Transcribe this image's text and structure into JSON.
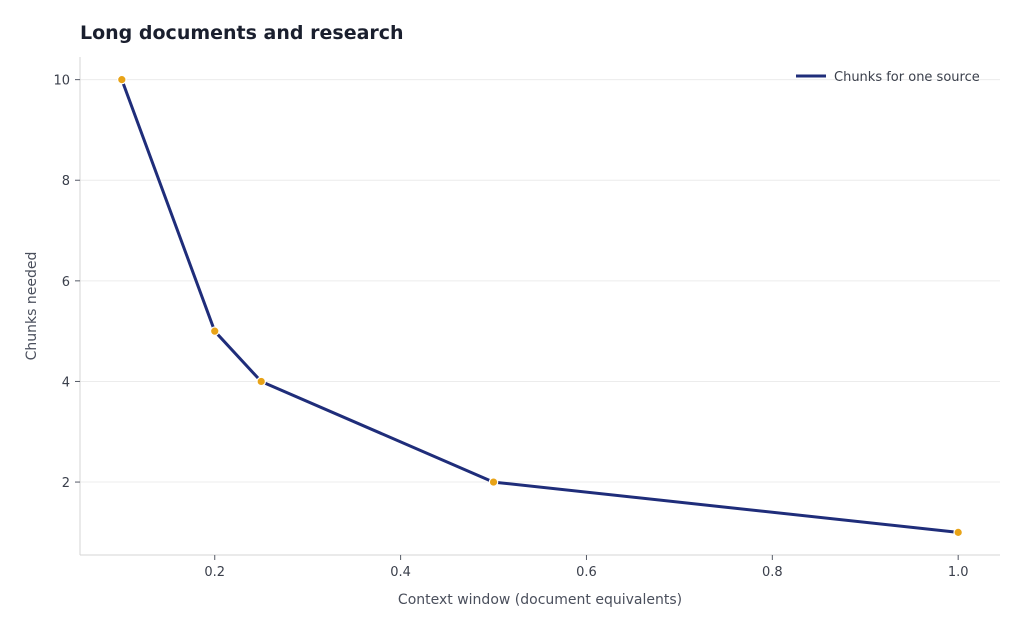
{
  "chart_data": {
    "type": "line",
    "title": "Long documents and research",
    "xlabel": "Context window (document equivalents)",
    "ylabel": "Chunks needed",
    "xlim": [
      0.055,
      1.045
    ],
    "ylim": [
      0.55,
      10.45
    ],
    "xticks": [
      0.2,
      0.4,
      0.6,
      0.8,
      1.0
    ],
    "xtick_labels": [
      "0.2",
      "0.4",
      "0.6",
      "0.8",
      "1.0"
    ],
    "yticks": [
      2,
      4,
      6,
      8,
      10
    ],
    "ytick_labels": [
      "2",
      "4",
      "6",
      "8",
      "10"
    ],
    "grid": "horizontal",
    "legend_position": "top-right",
    "series": [
      {
        "name": "Chunks for one source",
        "color": "#1f2d7a",
        "marker_color": "#e8a317",
        "x": [
          0.1,
          0.2,
          0.25,
          0.5,
          1.0
        ],
        "y": [
          10,
          5,
          4,
          2,
          1
        ]
      }
    ]
  }
}
